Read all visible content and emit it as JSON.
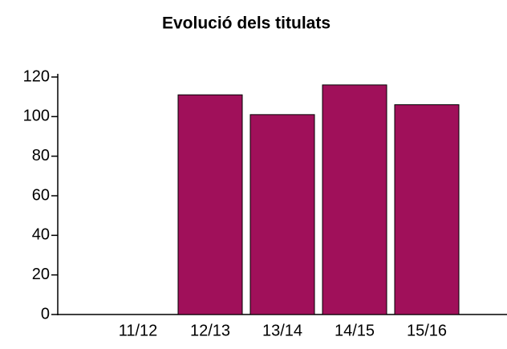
{
  "chart_data": {
    "type": "bar",
    "title": "Evolució dels titulats",
    "categories": [
      "11/12",
      "12/13",
      "13/14",
      "14/15",
      "15/16"
    ],
    "values": [
      0,
      111,
      101,
      116,
      106
    ],
    "color": "#a0105a",
    "ylim": [
      0,
      120
    ],
    "yticks": [
      0,
      20,
      40,
      60,
      80,
      100,
      120
    ],
    "grid": false
  }
}
